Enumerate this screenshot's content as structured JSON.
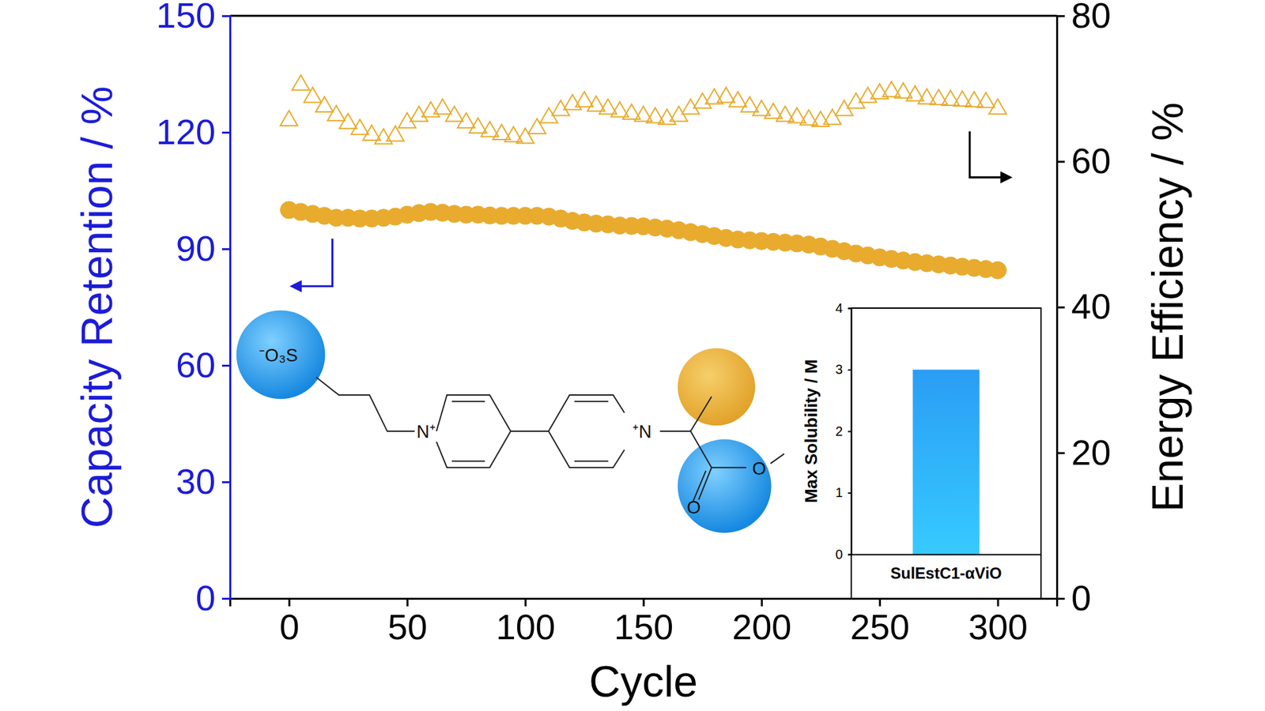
{
  "chart_data": [
    {
      "type": "scatter",
      "x_label": "Cycle",
      "y_label": "Capacity Retention / %",
      "y2_label": "Energy Efficiency / %",
      "xlim": [
        -25,
        325
      ],
      "xticks": [
        0,
        50,
        100,
        150,
        200,
        250,
        300
      ],
      "ylim": [
        0,
        150
      ],
      "yticks": [
        0,
        30,
        60,
        90,
        120,
        150
      ],
      "y2lim": [
        0,
        80
      ],
      "y2ticks": [
        0,
        20,
        40,
        60,
        80
      ],
      "annotations": [
        "⁻O₃S",
        "N⁺",
        "⁺N",
        "O",
        "O"
      ],
      "x": [
        0,
        5,
        10,
        15,
        20,
        25,
        30,
        35,
        40,
        45,
        50,
        55,
        60,
        65,
        70,
        75,
        80,
        85,
        90,
        95,
        100,
        105,
        110,
        115,
        120,
        125,
        130,
        135,
        140,
        145,
        150,
        155,
        160,
        165,
        170,
        175,
        180,
        185,
        190,
        195,
        200,
        205,
        210,
        215,
        220,
        225,
        230,
        235,
        240,
        245,
        250,
        255,
        260,
        265,
        270,
        275,
        280,
        285,
        290,
        295,
        300
      ],
      "series": [
        {
          "color": "#e8ab2e",
          "marker": "circle",
          "values": [
            100,
            99.5,
            99,
            98.5,
            98,
            98,
            97.8,
            97.8,
            98,
            98.3,
            98.8,
            99.2,
            99.5,
            99.3,
            99,
            98.8,
            98.8,
            98.6,
            98.5,
            98.5,
            98.5,
            98.5,
            98.3,
            97.8,
            97.2,
            96.8,
            96.5,
            96.3,
            96,
            95.9,
            95.8,
            95.5,
            95.2,
            94.8,
            94.3,
            93.8,
            93.3,
            92.8,
            92.4,
            92.2,
            92,
            91.8,
            91.6,
            91.4,
            91.1,
            90.6,
            90,
            89.4,
            88.8,
            88.3,
            87.8,
            87.4,
            87,
            86.6,
            86.3,
            86,
            85.7,
            85.4,
            85.1,
            84.8,
            84.5
          ]
        },
        {
          "axis": "y2",
          "color": "#e8ab2e",
          "marker": "open-triangle",
          "values": [
            65.6,
            70.5,
            68.8,
            67.5,
            66.3,
            65.2,
            64.4,
            63.6,
            63.1,
            63.5,
            65.3,
            66.2,
            66.8,
            67.2,
            66.2,
            65.3,
            64.6,
            64.1,
            63.7,
            63.4,
            63.2,
            64.5,
            66,
            67,
            67.8,
            68.2,
            67.6,
            67.2,
            66.8,
            66.5,
            66.2,
            66,
            65.8,
            66.2,
            67.2,
            68,
            68.6,
            68.8,
            68.2,
            67.5,
            67,
            66.6,
            66.2,
            66,
            65.7,
            65.5,
            65.8,
            67,
            68,
            68.8,
            69.3,
            69.6,
            69.4,
            69,
            68.6,
            68.5,
            68.4,
            68.3,
            68.2,
            68.1,
            67.2
          ]
        }
      ]
    },
    {
      "type": "bar",
      "y_label": "Max Solubility / M",
      "categories": [
        "SulEstC1-αViO"
      ],
      "values": [
        3
      ],
      "color": "#2a9df4",
      "ylim": [
        0,
        4
      ],
      "yticks": [
        0,
        1,
        2,
        3,
        4
      ]
    }
  ]
}
